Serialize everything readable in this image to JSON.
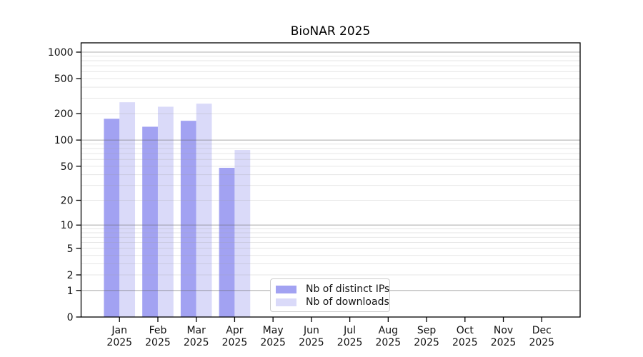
{
  "chart_data": {
    "type": "bar",
    "title": "BioNAR 2025",
    "categories": [
      "Jan",
      "Feb",
      "Mar",
      "Apr",
      "May",
      "Jun",
      "Jul",
      "Aug",
      "Sep",
      "Oct",
      "Nov",
      "Dec"
    ],
    "x_tick_year": "2025",
    "series": [
      {
        "name": "Nb of distinct IPs",
        "color": "#a2a2f2",
        "values": [
          175,
          142,
          166,
          48,
          0,
          0,
          0,
          0,
          0,
          0,
          0,
          0
        ]
      },
      {
        "name": "Nb of downloads",
        "color": "#dadaf9",
        "values": [
          270,
          240,
          260,
          77,
          0,
          0,
          0,
          0,
          0,
          0,
          0,
          0
        ]
      }
    ],
    "y_axis": {
      "scale": "log10(1+y)",
      "ticks": [
        0,
        1,
        2,
        5,
        10,
        20,
        50,
        100,
        200,
        500,
        1000
      ],
      "major_gridlines": [
        1,
        10,
        100,
        1000
      ],
      "top_value": 1000
    },
    "legend": {
      "position": "lower center",
      "entries": [
        "Nb of distinct IPs",
        "Nb of downloads"
      ]
    },
    "style": {
      "major_grid_color": "rgba(105,105,105,0.52)",
      "minor_grid_color": "rgba(160,160,160,0.26)",
      "spine_color": "#000000",
      "text_color": "#111111",
      "background": "#ffffff"
    }
  }
}
